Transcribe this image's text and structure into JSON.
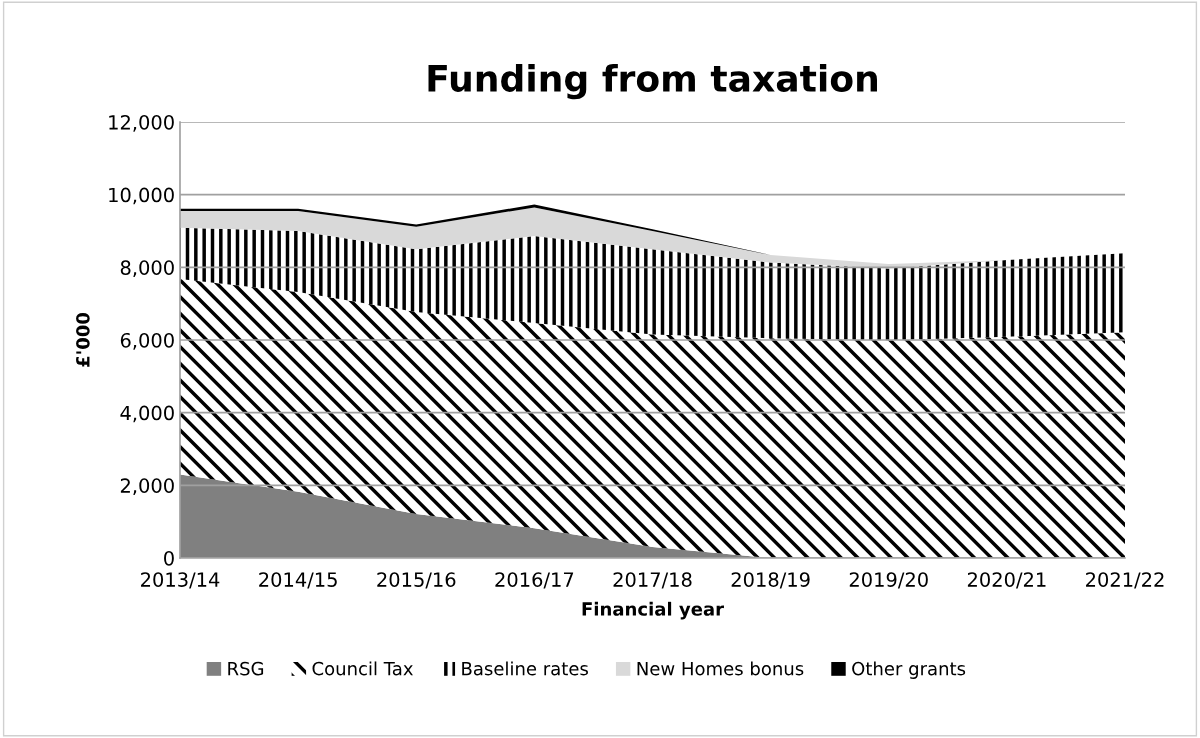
{
  "chart_data": {
    "type": "area",
    "stacked": true,
    "title": "Funding from taxation",
    "xlabel": "Financial year",
    "ylabel": "£'000",
    "categories": [
      "2013/14",
      "2014/15",
      "2015/16",
      "2016/17",
      "2017/18",
      "2018/19",
      "2019/20",
      "2020/21",
      "2021/22"
    ],
    "series": [
      {
        "name": "RSG",
        "color": "#808080",
        "values": [
          2300,
          1820,
          1210,
          820,
          300,
          0,
          0,
          0,
          0
        ]
      },
      {
        "name": "Council Tax",
        "color": "#000000",
        "values": [
          5380,
          5500,
          5560,
          5650,
          5850,
          6050,
          5990,
          6090,
          6210
        ]
      },
      {
        "name": "Baseline rates",
        "color": "#000000",
        "values": [
          1410,
          1680,
          1730,
          2390,
          2350,
          2080,
          1980,
          2110,
          2180
        ]
      },
      {
        "name": "New Homes bonus",
        "color": "#d9d9d9",
        "values": [
          460,
          550,
          620,
          790,
          500,
          210,
          120,
          0,
          0
        ]
      },
      {
        "name": "Other grants",
        "color": "#000000",
        "values": [
          60,
          60,
          60,
          80,
          50,
          0,
          0,
          0,
          0
        ]
      }
    ],
    "ylim": [
      0,
      12000
    ],
    "yticks": [
      {
        "value": 0,
        "label": "0"
      },
      {
        "value": 2000,
        "label": "2,000"
      },
      {
        "value": 4000,
        "label": "4,000"
      },
      {
        "value": 6000,
        "label": "6,000"
      },
      {
        "value": 8000,
        "label": "8,000"
      },
      {
        "value": 10000,
        "label": "10,000"
      },
      {
        "value": 12000,
        "label": "12,000"
      }
    ],
    "grid": "y",
    "legend": "bottom"
  }
}
